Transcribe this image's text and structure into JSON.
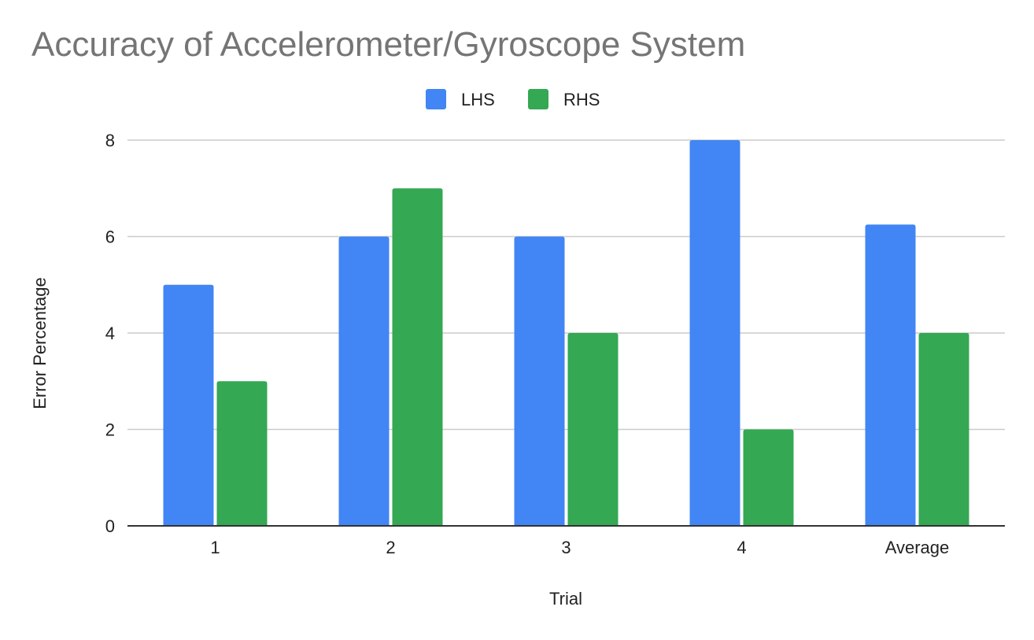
{
  "chart_data": {
    "type": "bar",
    "title": "Accuracy of Accelerometer/Gyroscope System",
    "xlabel": "Trial",
    "ylabel": "Error Percentage",
    "categories": [
      "1",
      "2",
      "3",
      "4",
      "Average"
    ],
    "series": [
      {
        "name": "LHS",
        "color": "#4285f4",
        "values": [
          5,
          6,
          6,
          8,
          6.25
        ]
      },
      {
        "name": "RHS",
        "color": "#34a853",
        "values": [
          3,
          7,
          4,
          2,
          4
        ]
      }
    ],
    "ylim": [
      0,
      8
    ],
    "yticks": [
      0,
      2,
      4,
      6,
      8
    ],
    "grid": true,
    "legend_position": "top-center"
  }
}
